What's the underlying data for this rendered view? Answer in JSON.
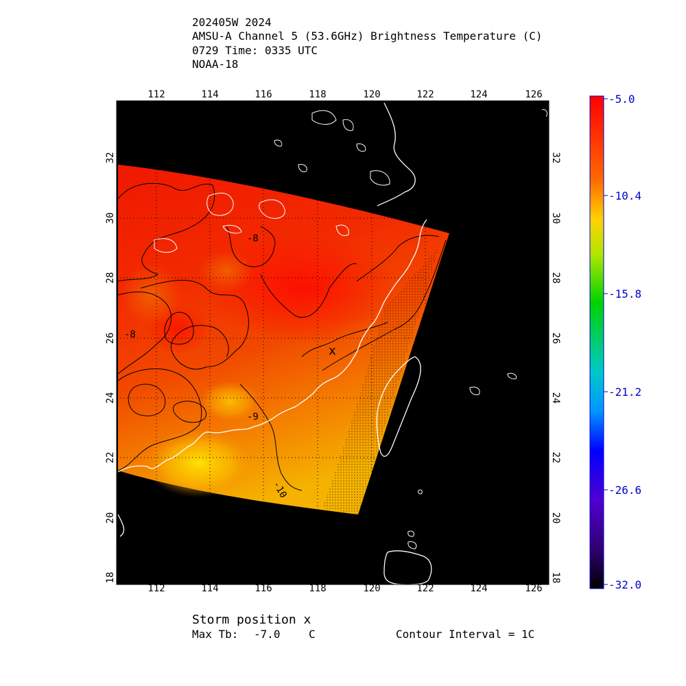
{
  "header": {
    "line1": "202405W 2024",
    "line2": "AMSU-A Channel 5 (53.6GHz) Brightness Temperature (C)",
    "line3": "0729 Time: 0335 UTC",
    "line4": "NOAA-18"
  },
  "map": {
    "lon_ticks": [
      "112",
      "114",
      "116",
      "118",
      "120",
      "122",
      "124",
      "126"
    ],
    "lat_ticks": [
      "18",
      "20",
      "22",
      "24",
      "26",
      "28",
      "30",
      "32"
    ],
    "contour_labels": [
      "-8",
      "-8",
      "-9",
      "-10"
    ],
    "storm_marker": "x",
    "colors": {
      "background": "#000000",
      "coast": "#ffffff",
      "grid": "#000000"
    }
  },
  "colorbar": {
    "labels": [
      "-5.0",
      "-10.4",
      "-15.8",
      "-21.2",
      "-26.6",
      "-32.0"
    ],
    "label_color": "#0000cc"
  },
  "footer": {
    "storm_position": "Storm position x",
    "max_tb_label": "Max Tb:",
    "max_tb_value": "-7.0",
    "max_tb_unit": "C",
    "contour_interval": "Contour Interval = 1C"
  }
}
